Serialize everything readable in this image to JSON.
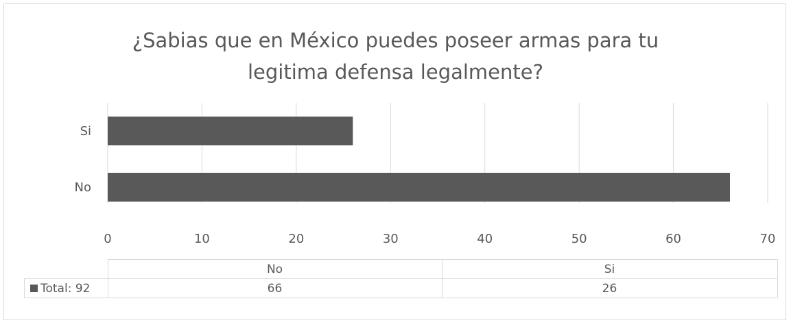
{
  "chart_data": {
    "type": "bar",
    "orientation": "horizontal",
    "title": "¿Sabias que en México puedes poseer armas para tu legitima defensa legalmente?",
    "title_lines": [
      "¿Sabias que en México puedes poseer armas para tu",
      "legitima defensa legalmente?"
    ],
    "categories": [
      "Si",
      "No"
    ],
    "series": [
      {
        "name": "Total: 92",
        "values": [
          26,
          66
        ]
      }
    ],
    "xlim": [
      0,
      70
    ],
    "xticks": [
      "0",
      "10",
      "20",
      "30",
      "40",
      "50",
      "60",
      "70"
    ],
    "grid": true,
    "bar_color": "#595959",
    "data_table": {
      "columns": [
        "No",
        "Si"
      ],
      "row_label": "Total: 92",
      "row_values": [
        "66",
        "26"
      ]
    }
  }
}
